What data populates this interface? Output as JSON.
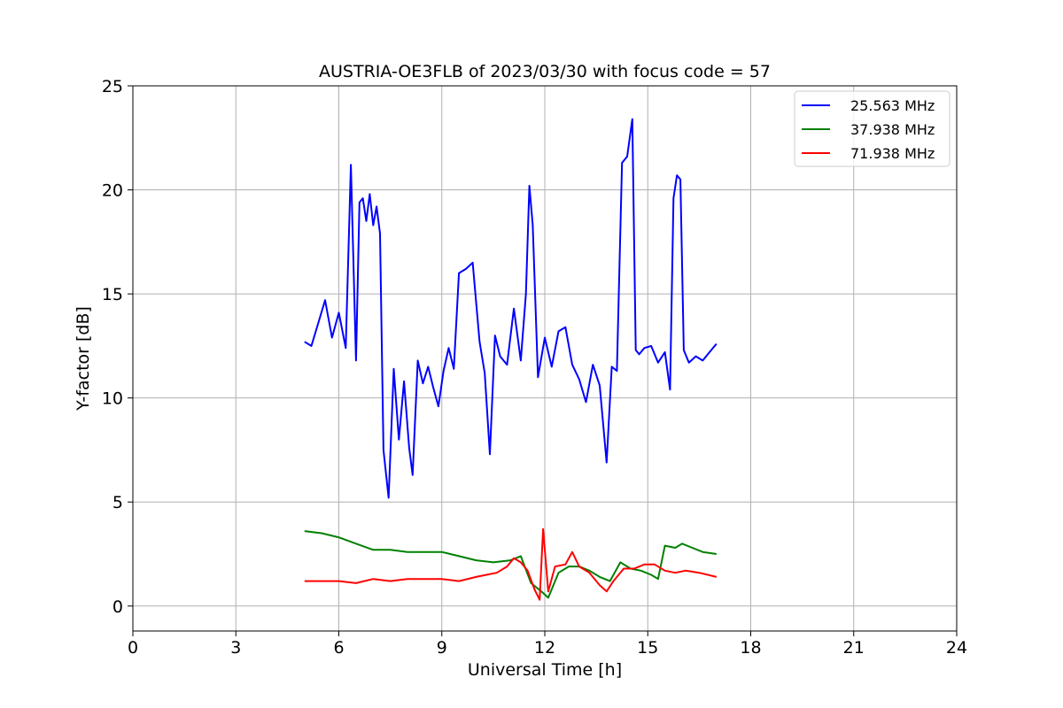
{
  "chart_data": {
    "type": "line",
    "title": "AUSTRIA-OE3FLB of 2023/03/30 with focus code = 57",
    "xlabel": "Universal Time [h]",
    "ylabel": "Y-factor [dB]",
    "xlim": [
      0,
      24
    ],
    "ylim": [
      -1.2,
      25
    ],
    "xticks": [
      0,
      3,
      6,
      9,
      12,
      15,
      18,
      21,
      24
    ],
    "yticks": [
      0,
      5,
      10,
      15,
      20,
      25
    ],
    "grid": true,
    "legend_position": "top-right",
    "series": [
      {
        "name": "25.563 MHz",
        "color": "#0000ff",
        "x": [
          5.0,
          5.2,
          5.4,
          5.6,
          5.8,
          6.0,
          6.2,
          6.35,
          6.5,
          6.6,
          6.7,
          6.8,
          6.9,
          7.0,
          7.1,
          7.2,
          7.3,
          7.45,
          7.6,
          7.75,
          7.9,
          8.05,
          8.15,
          8.3,
          8.45,
          8.6,
          8.75,
          8.9,
          9.05,
          9.2,
          9.35,
          9.5,
          9.7,
          9.9,
          10.1,
          10.25,
          10.4,
          10.55,
          10.7,
          10.9,
          11.1,
          11.3,
          11.45,
          11.55,
          11.65,
          11.8,
          12.0,
          12.2,
          12.4,
          12.6,
          12.8,
          13.0,
          13.2,
          13.4,
          13.6,
          13.8,
          13.95,
          14.1,
          14.25,
          14.4,
          14.55,
          14.65,
          14.75,
          14.9,
          15.1,
          15.3,
          15.5,
          15.65,
          15.75,
          15.85,
          15.95,
          16.05,
          16.2,
          16.4,
          16.6,
          16.8,
          17.0
        ],
        "y": [
          12.7,
          12.5,
          13.6,
          14.7,
          12.9,
          14.1,
          12.4,
          21.2,
          11.8,
          19.4,
          19.6,
          18.5,
          19.8,
          18.3,
          19.2,
          17.9,
          7.5,
          5.2,
          11.4,
          8.0,
          10.8,
          7.6,
          6.3,
          11.8,
          10.7,
          11.5,
          10.5,
          9.6,
          11.3,
          12.4,
          11.4,
          16.0,
          16.2,
          16.5,
          12.7,
          11.2,
          7.3,
          13.0,
          12.0,
          11.6,
          14.3,
          11.8,
          15.0,
          20.2,
          18.3,
          11.0,
          12.9,
          11.5,
          13.2,
          13.4,
          11.6,
          10.9,
          9.8,
          11.6,
          10.6,
          6.9,
          11.5,
          11.3,
          21.3,
          21.6,
          23.4,
          12.3,
          12.1,
          12.4,
          12.5,
          11.7,
          12.2,
          10.4,
          19.6,
          20.7,
          20.5,
          12.3,
          11.7,
          12.0,
          11.8,
          12.2,
          12.6
        ]
      },
      {
        "name": "37.938 MHz",
        "color": "#008000",
        "x": [
          5.0,
          5.5,
          6.0,
          6.5,
          7.0,
          7.5,
          8.0,
          8.5,
          9.0,
          9.5,
          10.0,
          10.5,
          11.0,
          11.3,
          11.6,
          11.9,
          12.1,
          12.4,
          12.7,
          13.0,
          13.3,
          13.6,
          13.9,
          14.2,
          14.5,
          14.8,
          15.1,
          15.3,
          15.5,
          15.8,
          16.0,
          16.3,
          16.6,
          17.0
        ],
        "y": [
          3.6,
          3.5,
          3.3,
          3.0,
          2.7,
          2.7,
          2.6,
          2.6,
          2.6,
          2.4,
          2.2,
          2.1,
          2.2,
          2.4,
          1.1,
          0.7,
          0.4,
          1.6,
          1.9,
          1.9,
          1.7,
          1.4,
          1.2,
          2.1,
          1.8,
          1.7,
          1.5,
          1.3,
          2.9,
          2.8,
          3.0,
          2.8,
          2.6,
          2.5
        ]
      },
      {
        "name": "71.938 MHz",
        "color": "#ff0000",
        "x": [
          5.0,
          5.5,
          6.0,
          6.5,
          7.0,
          7.5,
          8.0,
          8.5,
          9.0,
          9.5,
          10.0,
          10.3,
          10.6,
          10.9,
          11.1,
          11.3,
          11.5,
          11.7,
          11.85,
          11.95,
          12.1,
          12.3,
          12.6,
          12.8,
          13.0,
          13.3,
          13.6,
          13.8,
          14.0,
          14.3,
          14.6,
          14.9,
          15.2,
          15.5,
          15.8,
          16.1,
          16.5,
          17.0
        ],
        "y": [
          1.2,
          1.2,
          1.2,
          1.1,
          1.3,
          1.2,
          1.3,
          1.3,
          1.3,
          1.2,
          1.4,
          1.5,
          1.6,
          1.9,
          2.3,
          2.1,
          1.7,
          0.8,
          0.3,
          3.7,
          0.7,
          1.9,
          2.0,
          2.6,
          1.9,
          1.6,
          1.0,
          0.7,
          1.2,
          1.8,
          1.8,
          2.0,
          2.0,
          1.7,
          1.6,
          1.7,
          1.6,
          1.4
        ]
      }
    ]
  }
}
